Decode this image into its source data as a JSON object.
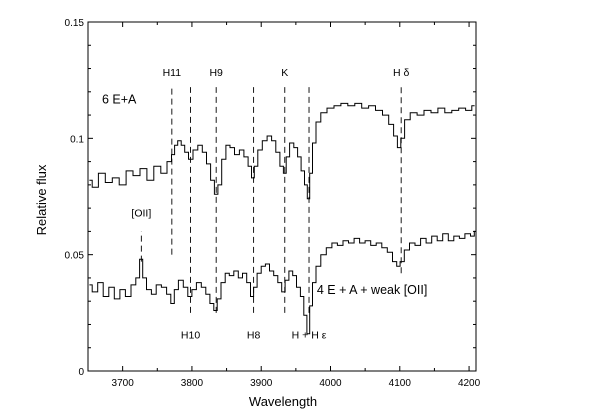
{
  "chart_data": {
    "type": "line",
    "xlabel": "Wavelength",
    "ylabel": "Relative flux",
    "xlim": [
      3650,
      4210
    ],
    "ylim": [
      0,
      0.15
    ],
    "x_ticks": [
      3700,
      3800,
      3900,
      4000,
      4100,
      4200
    ],
    "x_tick_labels": [
      "3700",
      "3800",
      "3900",
      "4000",
      "4100",
      "4200"
    ],
    "y_ticks": [
      0,
      0.05,
      0.1,
      0.15
    ],
    "y_tick_labels": [
      "0",
      "0.05",
      "0.1",
      "0.15"
    ],
    "grid": false,
    "series": [
      {
        "label": "6 E+A",
        "color": "#000000",
        "points": [
          [
            3652,
            0.082
          ],
          [
            3660,
            0.079
          ],
          [
            3670,
            0.085
          ],
          [
            3680,
            0.081
          ],
          [
            3690,
            0.083
          ],
          [
            3700,
            0.08
          ],
          [
            3710,
            0.086
          ],
          [
            3720,
            0.084
          ],
          [
            3730,
            0.087
          ],
          [
            3740,
            0.082
          ],
          [
            3750,
            0.088
          ],
          [
            3760,
            0.085
          ],
          [
            3768,
            0.09
          ],
          [
            3773,
            0.093
          ],
          [
            3777,
            0.097
          ],
          [
            3782,
            0.099
          ],
          [
            3787,
            0.097
          ],
          [
            3792,
            0.094
          ],
          [
            3798,
            0.091
          ],
          [
            3805,
            0.095
          ],
          [
            3812,
            0.097
          ],
          [
            3818,
            0.094
          ],
          [
            3824,
            0.089
          ],
          [
            3830,
            0.082
          ],
          [
            3835,
            0.076
          ],
          [
            3840,
            0.08
          ],
          [
            3846,
            0.091
          ],
          [
            3852,
            0.097
          ],
          [
            3858,
            0.096
          ],
          [
            3865,
            0.093
          ],
          [
            3872,
            0.095
          ],
          [
            3878,
            0.092
          ],
          [
            3884,
            0.088
          ],
          [
            3888,
            0.083
          ],
          [
            3892,
            0.088
          ],
          [
            3898,
            0.095
          ],
          [
            3905,
            0.099
          ],
          [
            3912,
            0.101
          ],
          [
            3918,
            0.099
          ],
          [
            3924,
            0.094
          ],
          [
            3930,
            0.088
          ],
          [
            3934,
            0.085
          ],
          [
            3938,
            0.092
          ],
          [
            3944,
            0.098
          ],
          [
            3950,
            0.096
          ],
          [
            3955,
            0.092
          ],
          [
            3960,
            0.086
          ],
          [
            3965,
            0.08
          ],
          [
            3968,
            0.074
          ],
          [
            3972,
            0.085
          ],
          [
            3976,
            0.098
          ],
          [
            3982,
            0.107
          ],
          [
            3990,
            0.111
          ],
          [
            4000,
            0.113
          ],
          [
            4010,
            0.114
          ],
          [
            4020,
            0.115
          ],
          [
            4030,
            0.114
          ],
          [
            4040,
            0.115
          ],
          [
            4050,
            0.113
          ],
          [
            4060,
            0.114
          ],
          [
            4070,
            0.112
          ],
          [
            4080,
            0.11
          ],
          [
            4088,
            0.106
          ],
          [
            4094,
            0.101
          ],
          [
            4099,
            0.096
          ],
          [
            4104,
            0.1
          ],
          [
            4110,
            0.108
          ],
          [
            4120,
            0.111
          ],
          [
            4130,
            0.11
          ],
          [
            4140,
            0.112
          ],
          [
            4150,
            0.111
          ],
          [
            4160,
            0.113
          ],
          [
            4170,
            0.111
          ],
          [
            4180,
            0.112
          ],
          [
            4190,
            0.113
          ],
          [
            4200,
            0.112
          ],
          [
            4208,
            0.114
          ]
        ]
      },
      {
        "label": "4 E + A + weak [OII]",
        "color": "#000000",
        "points": [
          [
            3652,
            0.037
          ],
          [
            3660,
            0.034
          ],
          [
            3668,
            0.038
          ],
          [
            3676,
            0.032
          ],
          [
            3684,
            0.036
          ],
          [
            3692,
            0.031
          ],
          [
            3700,
            0.035
          ],
          [
            3708,
            0.032
          ],
          [
            3716,
            0.037
          ],
          [
            3722,
            0.04
          ],
          [
            3727,
            0.048
          ],
          [
            3731,
            0.04
          ],
          [
            3738,
            0.035
          ],
          [
            3745,
            0.033
          ],
          [
            3752,
            0.037
          ],
          [
            3760,
            0.036
          ],
          [
            3767,
            0.033
          ],
          [
            3772,
            0.029
          ],
          [
            3777,
            0.035
          ],
          [
            3784,
            0.039
          ],
          [
            3791,
            0.036
          ],
          [
            3797,
            0.032
          ],
          [
            3803,
            0.035
          ],
          [
            3810,
            0.038
          ],
          [
            3817,
            0.036
          ],
          [
            3823,
            0.033
          ],
          [
            3829,
            0.029
          ],
          [
            3834,
            0.026
          ],
          [
            3839,
            0.031
          ],
          [
            3845,
            0.038
          ],
          [
            3851,
            0.042
          ],
          [
            3857,
            0.041
          ],
          [
            3864,
            0.043
          ],
          [
            3870,
            0.04
          ],
          [
            3876,
            0.042
          ],
          [
            3882,
            0.038
          ],
          [
            3887,
            0.032
          ],
          [
            3891,
            0.036
          ],
          [
            3897,
            0.042
          ],
          [
            3903,
            0.045
          ],
          [
            3909,
            0.046
          ],
          [
            3915,
            0.043
          ],
          [
            3921,
            0.041
          ],
          [
            3927,
            0.038
          ],
          [
            3932,
            0.034
          ],
          [
            3937,
            0.039
          ],
          [
            3943,
            0.043
          ],
          [
            3948,
            0.041
          ],
          [
            3954,
            0.036
          ],
          [
            3959,
            0.032
          ],
          [
            3964,
            0.024
          ],
          [
            3968,
            0.016
          ],
          [
            3972,
            0.028
          ],
          [
            3976,
            0.038
          ],
          [
            3982,
            0.045
          ],
          [
            3990,
            0.05
          ],
          [
            3998,
            0.053
          ],
          [
            4006,
            0.055
          ],
          [
            4014,
            0.054
          ],
          [
            4022,
            0.056
          ],
          [
            4030,
            0.055
          ],
          [
            4038,
            0.057
          ],
          [
            4046,
            0.055
          ],
          [
            4054,
            0.056
          ],
          [
            4062,
            0.054
          ],
          [
            4070,
            0.055
          ],
          [
            4078,
            0.053
          ],
          [
            4086,
            0.051
          ],
          [
            4093,
            0.047
          ],
          [
            4098,
            0.045
          ],
          [
            4103,
            0.047
          ],
          [
            4110,
            0.052
          ],
          [
            4118,
            0.055
          ],
          [
            4126,
            0.054
          ],
          [
            4134,
            0.057
          ],
          [
            4142,
            0.055
          ],
          [
            4150,
            0.058
          ],
          [
            4158,
            0.056
          ],
          [
            4166,
            0.059
          ],
          [
            4174,
            0.056
          ],
          [
            4182,
            0.058
          ],
          [
            4190,
            0.057
          ],
          [
            4198,
            0.059
          ],
          [
            4206,
            0.058
          ],
          [
            4209,
            0.06
          ]
        ]
      }
    ],
    "reference_lines": [
      {
        "x": 3727,
        "y_range": [
          0.047,
          0.06
        ],
        "style": "dashed"
      },
      {
        "x": 3771,
        "y_range": [
          0.05,
          0.122
        ],
        "style": "dashed"
      },
      {
        "x": 3798,
        "y_range": [
          0.025,
          0.122
        ],
        "style": "dashed"
      },
      {
        "x": 3835,
        "y_range": [
          0.025,
          0.122
        ],
        "style": "dashed"
      },
      {
        "x": 3889,
        "y_range": [
          0.025,
          0.122
        ],
        "style": "dashed"
      },
      {
        "x": 3934,
        "y_range": [
          0.025,
          0.122
        ],
        "style": "dashed"
      },
      {
        "x": 3969,
        "y_range": [
          0.025,
          0.122
        ],
        "style": "dashed"
      },
      {
        "x": 4102,
        "y_range": [
          0.042,
          0.122
        ],
        "style": "dashed"
      }
    ],
    "annotations": [
      {
        "text": "H11",
        "x": 3771,
        "y": 0.1268
      },
      {
        "text": "H9",
        "x": 3835,
        "y": 0.1268
      },
      {
        "text": "K",
        "x": 3934,
        "y": 0.1268
      },
      {
        "text": "H δ",
        "x": 4102,
        "y": 0.1268
      },
      {
        "text": "6 E+A",
        "x": 3695,
        "y": 0.115
      },
      {
        "text": "[OII]",
        "x": 3727,
        "y": 0.0665
      },
      {
        "text": "4 E + A + weak [OII]",
        "x": 4060,
        "y": 0.033
      },
      {
        "text": "H10",
        "x": 3798,
        "y": 0.014
      },
      {
        "text": "H8",
        "x": 3889,
        "y": 0.014
      },
      {
        "text": "H + H ε",
        "x": 3969,
        "y": 0.014
      }
    ]
  }
}
